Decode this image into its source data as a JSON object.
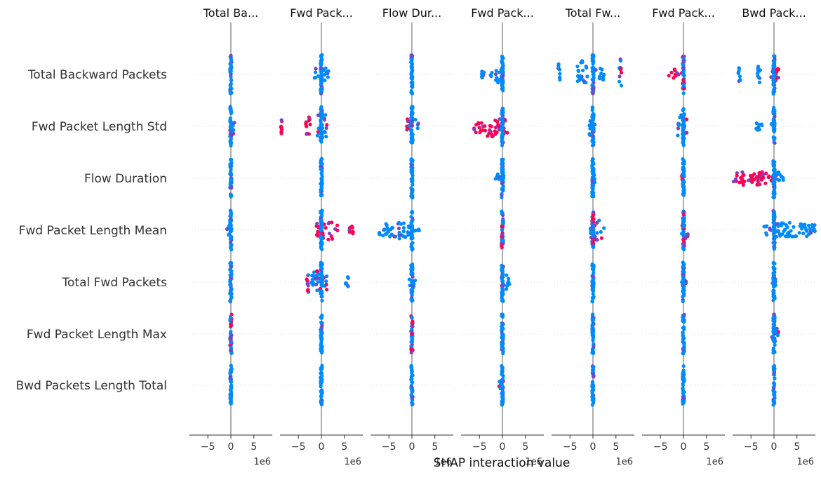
{
  "chart_data": {
    "type": "scatter",
    "xlabel": "SHAP interaction value",
    "features": [
      "Total Backward Packets",
      "Fwd Packet Length Std",
      "Flow Duration",
      "Fwd Packet Length Mean",
      "Total Fwd Packets",
      "Fwd Packet Length Max",
      "Bwd Packets Length Total"
    ],
    "panel_titles": [
      "Total Ba...",
      "Fwd Pack...",
      "Flow Dur...",
      "Fwd Pack...",
      "Total Fw...",
      "Fwd Pack...",
      "Bwd Pack..."
    ],
    "x_ticks": [
      -5,
      0,
      5
    ],
    "x_tick_labels": [
      "−5",
      "0",
      "5"
    ],
    "x_multiplier": "1e6",
    "xlim": [
      -9,
      9
    ],
    "colors": {
      "low": "#008bfb",
      "high": "#ff0052",
      "mid": "#7a42c4",
      "zero_line": "#999999",
      "grid": "#dddddd",
      "text": "#333333"
    },
    "panels": [
      [
        [
          {
            "x1": 0,
            "x2": 0,
            "spread": 7,
            "c": "blue"
          }
        ],
        [
          {
            "x1": -0.2,
            "x2": 0.9,
            "spread": 4,
            "c": "mix"
          },
          {
            "x1": 0,
            "x2": 0,
            "spread": 7,
            "c": "blue"
          }
        ],
        [
          {
            "x1": 0,
            "x2": 0,
            "spread": 7,
            "c": "blue"
          }
        ],
        [
          {
            "x1": -0.9,
            "x2": 0.3,
            "spread": 2,
            "c": "blue"
          },
          {
            "x1": 0,
            "x2": 0,
            "spread": 7,
            "c": "blue"
          }
        ],
        [
          {
            "x1": 0,
            "x2": 0,
            "spread": 7,
            "c": "blue"
          }
        ],
        [
          {
            "x1": 0,
            "x2": 0,
            "spread": 7,
            "c": "mix"
          }
        ],
        [
          {
            "x1": 0,
            "x2": 0,
            "spread": 7,
            "c": "blue"
          }
        ]
      ],
      [
        [
          {
            "x1": -1.6,
            "x2": 1.6,
            "spread": 3,
            "c": "blue"
          },
          {
            "x1": 0,
            "x2": 0,
            "spread": 7,
            "c": "blue"
          }
        ],
        [
          {
            "x1": -8.8,
            "x2": -8.6,
            "spread": 3,
            "c": "red"
          },
          {
            "x1": -3.4,
            "x2": -2.4,
            "spread": 4,
            "c": "red"
          },
          {
            "x1": -0.9,
            "x2": 1.2,
            "spread": 6,
            "c": "mix"
          },
          {
            "x1": 0,
            "x2": 0,
            "spread": 7,
            "c": "blue"
          }
        ],
        [
          {
            "x1": 0,
            "x2": 0,
            "spread": 7,
            "c": "blue"
          }
        ],
        [
          {
            "x1": -1.1,
            "x2": 3.6,
            "spread": 4,
            "c": "red"
          },
          {
            "x1": 6.1,
            "x2": 6.9,
            "spread": 2,
            "c": "red"
          },
          {
            "x1": 0,
            "x2": 0,
            "spread": 7,
            "c": "blue"
          }
        ],
        [
          {
            "x1": -3.6,
            "x2": 1.2,
            "spread": 5,
            "c": "mix"
          },
          {
            "x1": 5.2,
            "x2": 6.2,
            "spread": 2,
            "c": "blue"
          },
          {
            "x1": 0,
            "x2": 0,
            "spread": 7,
            "c": "blue"
          }
        ],
        [
          {
            "x1": 0,
            "x2": 0,
            "spread": 7,
            "c": "blue"
          }
        ],
        [
          {
            "x1": 0,
            "x2": 0,
            "spread": 7,
            "c": "blue"
          }
        ]
      ],
      [
        [
          {
            "x1": 0,
            "x2": 0,
            "spread": 7,
            "c": "blue"
          }
        ],
        [
          {
            "x1": -1.1,
            "x2": 1.4,
            "spread": 4,
            "c": "mix"
          },
          {
            "x1": 0,
            "x2": 0,
            "spread": 7,
            "c": "blue"
          }
        ],
        [
          {
            "x1": 0,
            "x2": 0,
            "spread": 7,
            "c": "blue"
          }
        ],
        [
          {
            "x1": -7.2,
            "x2": 1.6,
            "spread": 3,
            "c": "blue"
          },
          {
            "x1": 0,
            "x2": 0,
            "spread": 7,
            "c": "blue"
          }
        ],
        [
          {
            "x1": -0.6,
            "x2": 0.8,
            "spread": 2,
            "c": "blue"
          },
          {
            "x1": 0,
            "x2": 0,
            "spread": 7,
            "c": "blue"
          }
        ],
        [
          {
            "x1": 0,
            "x2": 0,
            "spread": 7,
            "c": "mix"
          }
        ],
        [
          {
            "x1": 0,
            "x2": 0,
            "spread": 7,
            "c": "blue"
          }
        ]
      ],
      [
        [
          {
            "x1": -4.5,
            "x2": -4.0,
            "spread": 2,
            "c": "blue"
          },
          {
            "x1": -2.6,
            "x2": 0.5,
            "spread": 3,
            "c": "blue"
          },
          {
            "x1": 0,
            "x2": 0,
            "spread": 7,
            "c": "blue"
          }
        ],
        [
          {
            "x1": -6.4,
            "x2": 1.2,
            "spread": 4,
            "c": "red"
          },
          {
            "x1": 0,
            "x2": 0,
            "spread": 7,
            "c": "blue"
          }
        ],
        [
          {
            "x1": -1.6,
            "x2": 0.4,
            "spread": 2,
            "c": "blue"
          },
          {
            "x1": 0,
            "x2": 0,
            "spread": 7,
            "c": "blue"
          }
        ],
        [
          {
            "x1": 0,
            "x2": 0,
            "spread": 7,
            "c": "mix"
          }
        ],
        [
          {
            "x1": 0,
            "x2": 1.6,
            "spread": 3,
            "c": "blue"
          },
          {
            "x1": 0,
            "x2": 0,
            "spread": 7,
            "c": "blue"
          }
        ],
        [
          {
            "x1": 0,
            "x2": 0,
            "spread": 7,
            "c": "blue"
          }
        ],
        [
          {
            "x1": -0.9,
            "x2": 0.6,
            "spread": 2,
            "c": "mix"
          },
          {
            "x1": 0,
            "x2": 0,
            "spread": 7,
            "c": "blue"
          }
        ]
      ],
      [
        [
          {
            "x1": -7.6,
            "x2": -7.0,
            "spread": 7,
            "c": "blue"
          },
          {
            "x1": -3.4,
            "x2": -1.2,
            "spread": 5,
            "c": "blue"
          },
          {
            "x1": 0.6,
            "x2": 2.4,
            "spread": 3,
            "c": "blue"
          },
          {
            "x1": 5.6,
            "x2": 6.2,
            "spread": 7,
            "c": "mix"
          },
          {
            "x1": 0,
            "x2": 0,
            "spread": 7,
            "c": "blue"
          }
        ],
        [
          {
            "x1": -1.0,
            "x2": 0.4,
            "spread": 4,
            "c": "blue"
          },
          {
            "x1": 0,
            "x2": 0,
            "spread": 7,
            "c": "blue"
          }
        ],
        [
          {
            "x1": -0.4,
            "x2": 0.6,
            "spread": 2,
            "c": "blue"
          },
          {
            "x1": 0,
            "x2": 0,
            "spread": 7,
            "c": "blue"
          }
        ],
        [
          {
            "x1": -0.6,
            "x2": 2.6,
            "spread": 4,
            "c": "mix"
          },
          {
            "x1": 0,
            "x2": 0,
            "spread": 7,
            "c": "mix"
          }
        ],
        [
          {
            "x1": 0,
            "x2": 0,
            "spread": 7,
            "c": "blue"
          }
        ],
        [
          {
            "x1": 0,
            "x2": 0,
            "spread": 7,
            "c": "blue"
          }
        ],
        [
          {
            "x1": 0,
            "x2": 0,
            "spread": 7,
            "c": "blue"
          }
        ]
      ],
      [
        [
          {
            "x1": -3.2,
            "x2": -0.2,
            "spread": 2,
            "c": "red"
          },
          {
            "x1": 0,
            "x2": 0,
            "spread": 7,
            "c": "mix"
          }
        ],
        [
          {
            "x1": -1.4,
            "x2": 0.8,
            "spread": 5,
            "c": "mix"
          },
          {
            "x1": 0,
            "x2": 0,
            "spread": 7,
            "c": "blue"
          }
        ],
        [
          {
            "x1": -0.4,
            "x2": 0.2,
            "spread": 2,
            "c": "red"
          },
          {
            "x1": 0,
            "x2": 0,
            "spread": 7,
            "c": "blue"
          }
        ],
        [
          {
            "x1": -0.4,
            "x2": 1.2,
            "spread": 3,
            "c": "mix"
          },
          {
            "x1": 0,
            "x2": 0,
            "spread": 7,
            "c": "mix"
          }
        ],
        [
          {
            "x1": -0.4,
            "x2": 0.6,
            "spread": 2,
            "c": "mix"
          },
          {
            "x1": 0,
            "x2": 0,
            "spread": 7,
            "c": "blue"
          }
        ],
        [
          {
            "x1": 0,
            "x2": 0,
            "spread": 7,
            "c": "blue"
          }
        ],
        [
          {
            "x1": 0,
            "x2": 0,
            "spread": 7,
            "c": "blue"
          }
        ]
      ],
      [
        [
          {
            "x1": -7.8,
            "x2": -7.2,
            "spread": 3,
            "c": "blue"
          },
          {
            "x1": -3.6,
            "x2": -3.0,
            "spread": 5,
            "c": "blue"
          },
          {
            "x1": -0.8,
            "x2": 1.2,
            "spread": 3,
            "c": "red"
          },
          {
            "x1": 0,
            "x2": 0,
            "spread": 7,
            "c": "blue"
          }
        ],
        [
          {
            "x1": -4.0,
            "x2": 0.4,
            "spread": 2,
            "c": "blue"
          },
          {
            "x1": 0,
            "x2": 0,
            "spread": 7,
            "c": "blue"
          }
        ],
        [
          {
            "x1": -9.0,
            "x2": -0.2,
            "spread": 3,
            "c": "red"
          },
          {
            "x1": -0.2,
            "x2": 2.2,
            "spread": 3,
            "c": "blue"
          },
          {
            "x1": 0,
            "x2": 0,
            "spread": 7,
            "c": "blue"
          }
        ],
        [
          {
            "x1": -2.2,
            "x2": 9.0,
            "spread": 3,
            "c": "blue"
          },
          {
            "x1": 0,
            "x2": 0,
            "spread": 7,
            "c": "blue"
          }
        ],
        [
          {
            "x1": -0.4,
            "x2": 0.4,
            "spread": 2,
            "c": "mix"
          },
          {
            "x1": 0,
            "x2": 0,
            "spread": 7,
            "c": "blue"
          }
        ],
        [
          {
            "x1": -0.8,
            "x2": 1.2,
            "spread": 3,
            "c": "mix"
          },
          {
            "x1": 0,
            "x2": 0,
            "spread": 7,
            "c": "blue"
          }
        ],
        [
          {
            "x1": 0,
            "x2": 0,
            "spread": 7,
            "c": "blue"
          }
        ]
      ]
    ]
  }
}
